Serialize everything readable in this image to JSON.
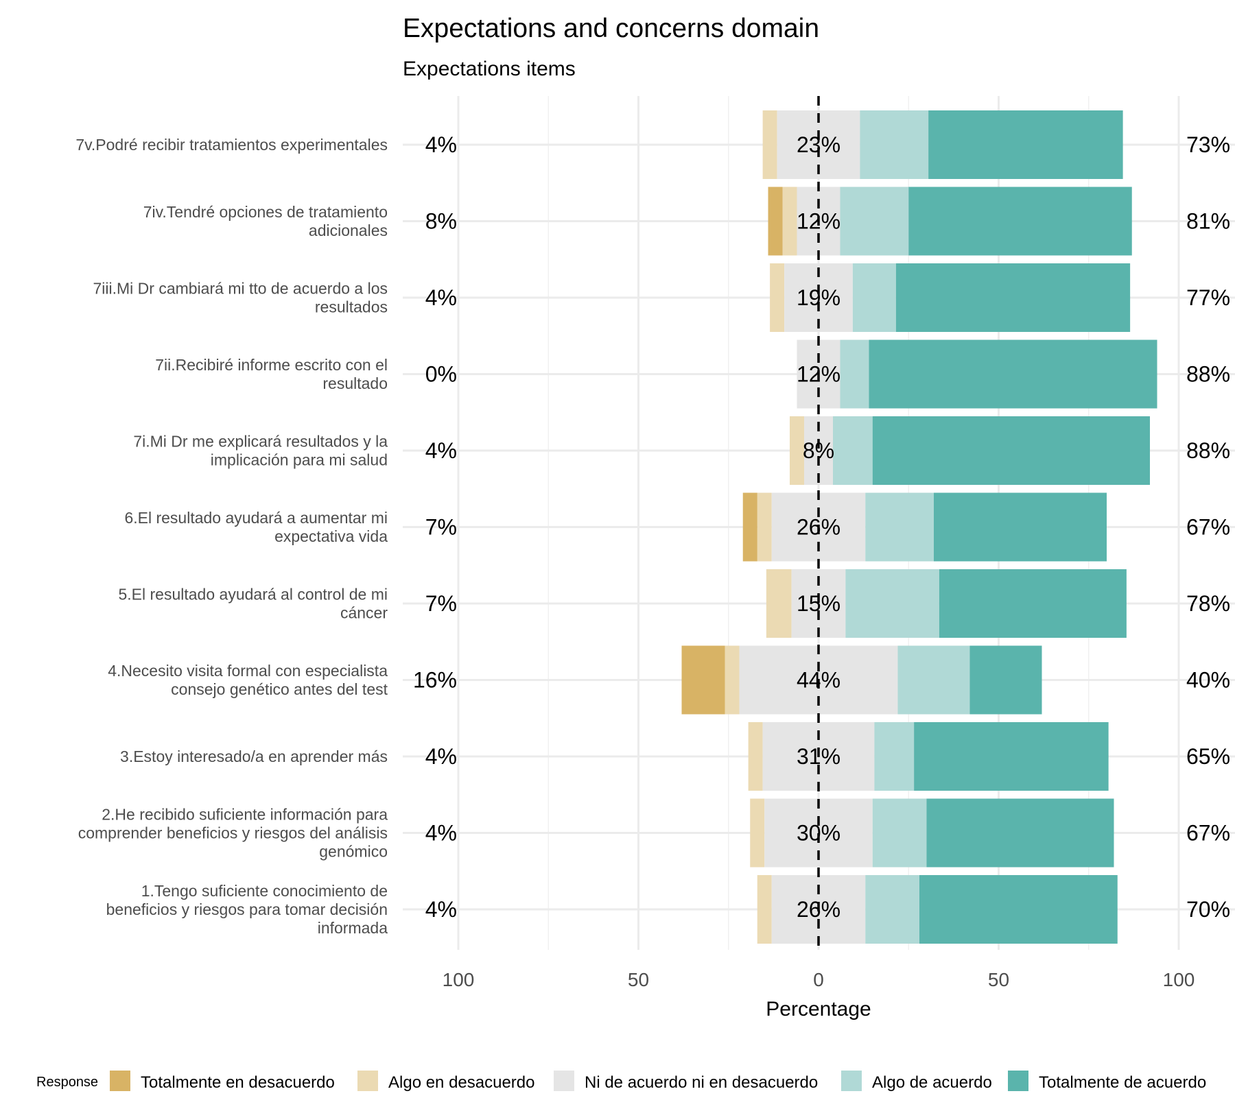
{
  "chart_data": {
    "type": "bar",
    "orientation": "horizontal-diverging",
    "title": "Expectations and concerns domain",
    "subtitle": "Expectations items",
    "xlabel": "Percentage",
    "xlim": [
      -100,
      100
    ],
    "x_ticks": [
      -100,
      -50,
      0,
      50,
      100
    ],
    "x_tick_labels": [
      "100",
      "50",
      "0",
      "50",
      "100"
    ],
    "grid": true,
    "legend": {
      "title": "Response",
      "placement": "bottom"
    },
    "responses": [
      {
        "name": "Totalmente en desacuerdo",
        "color": "#d8b365"
      },
      {
        "name": "Algo en desacuerdo",
        "color": "#ebdab3"
      },
      {
        "name": "Ni de acuerdo ni en desacuerdo",
        "color": "#e5e5e5"
      },
      {
        "name": "Algo de acuerdo",
        "color": "#b0d9d6"
      },
      {
        "name": "Totalmente de acuerdo",
        "color": "#5ab4ac"
      }
    ],
    "items": [
      {
        "label": "7v.Podré recibir tratamientos experimentales",
        "left_pct": "4%",
        "mid_pct": "23%",
        "right_pct": "73%",
        "values": [
          0,
          4,
          23,
          19,
          54
        ]
      },
      {
        "label": "7iv.Tendré opciones de tratamiento\nadicionales",
        "left_pct": "8%",
        "mid_pct": "12%",
        "right_pct": "81%",
        "values": [
          4,
          4,
          12,
          19,
          62
        ]
      },
      {
        "label": "7iii.Mi Dr cambiará mi tto de acuerdo a los\nresultados",
        "left_pct": "4%",
        "mid_pct": "19%",
        "right_pct": "77%",
        "values": [
          0,
          4,
          19,
          12,
          65
        ]
      },
      {
        "label": "7ii.Recibiré informe escrito con el\nresultado",
        "left_pct": "0%",
        "mid_pct": "12%",
        "right_pct": "88%",
        "values": [
          0,
          0,
          12,
          8,
          80
        ]
      },
      {
        "label": "7i.Mi Dr me explicará resultados y la\nimplicación para mi salud",
        "left_pct": "4%",
        "mid_pct": "8%",
        "right_pct": "88%",
        "values": [
          0,
          4,
          8,
          11,
          77
        ]
      },
      {
        "label": "6.El resultado ayudará a aumentar mi\nexpectativa vida",
        "left_pct": "7%",
        "mid_pct": "26%",
        "right_pct": "67%",
        "values": [
          4,
          4,
          26,
          19,
          48
        ]
      },
      {
        "label": "5.El resultado ayudará al control de mi\ncáncer",
        "left_pct": "7%",
        "mid_pct": "15%",
        "right_pct": "78%",
        "values": [
          0,
          7,
          15,
          26,
          52
        ]
      },
      {
        "label": "4.Necesito visita formal con especialista\nconsejo genético antes del test",
        "left_pct": "16%",
        "mid_pct": "44%",
        "right_pct": "40%",
        "values": [
          12,
          4,
          44,
          20,
          20
        ]
      },
      {
        "label": "3.Estoy interesado/a en aprender más",
        "left_pct": "4%",
        "mid_pct": "31%",
        "right_pct": "65%",
        "values": [
          0,
          4,
          31,
          11,
          54
        ]
      },
      {
        "label": "2.He recibido suficiente información para\ncomprender beneficios y riesgos del análisis\ngenómico",
        "left_pct": "4%",
        "mid_pct": "30%",
        "right_pct": "67%",
        "values": [
          0,
          4,
          30,
          15,
          52
        ]
      },
      {
        "label": "1.Tengo suficiente conocimiento de\nbeneficios y riesgos para tomar decisión\ninformada",
        "left_pct": "4%",
        "mid_pct": "26%",
        "right_pct": "70%",
        "values": [
          0,
          4,
          26,
          15,
          55
        ]
      }
    ]
  }
}
